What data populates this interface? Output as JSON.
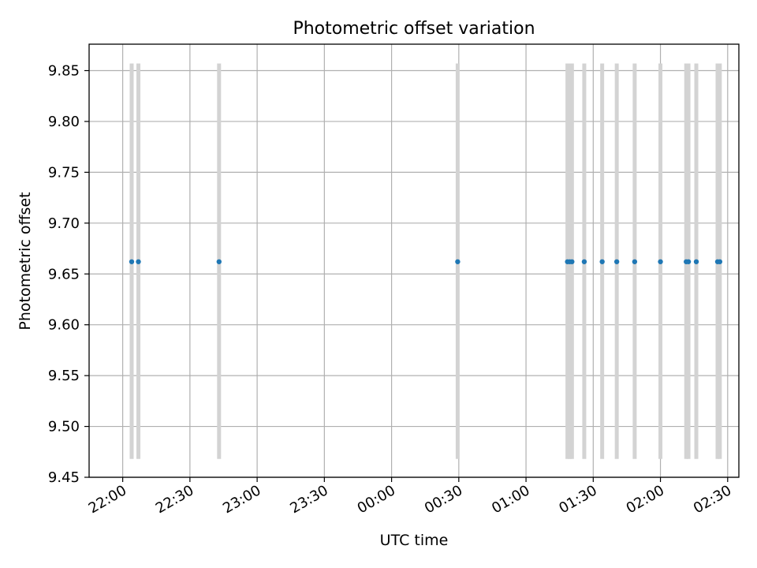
{
  "chart_data": {
    "type": "scatter",
    "title": "Photometric offset variation",
    "xlabel": "UTC time",
    "ylabel": "Photometric offset",
    "x_unit": "minutes",
    "xlim": [
      -15,
      275
    ],
    "ylim": [
      9.45,
      9.876
    ],
    "grid": true,
    "x_ticks": [
      {
        "value": 0,
        "label": "22:00"
      },
      {
        "value": 30,
        "label": "22:30"
      },
      {
        "value": 60,
        "label": "23:00"
      },
      {
        "value": 90,
        "label": "23:30"
      },
      {
        "value": 120,
        "label": "00:00"
      },
      {
        "value": 150,
        "label": "00:30"
      },
      {
        "value": 180,
        "label": "01:00"
      },
      {
        "value": 210,
        "label": "01:30"
      },
      {
        "value": 240,
        "label": "02:00"
      },
      {
        "value": 270,
        "label": "02:30"
      }
    ],
    "y_ticks": [
      {
        "value": 9.45,
        "label": "9.45"
      },
      {
        "value": 9.5,
        "label": "9.50"
      },
      {
        "value": 9.55,
        "label": "9.55"
      },
      {
        "value": 9.6,
        "label": "9.60"
      },
      {
        "value": 9.65,
        "label": "9.65"
      },
      {
        "value": 9.7,
        "label": "9.70"
      },
      {
        "value": 9.75,
        "label": "9.75"
      },
      {
        "value": 9.8,
        "label": "9.80"
      },
      {
        "value": 9.85,
        "label": "9.85"
      }
    ],
    "marker_color": "#1f77b4",
    "errorbar_color": "#d3d3d3",
    "points": [
      {
        "x": 4.0,
        "y": 9.662,
        "ylow": 9.468,
        "yhigh": 9.857
      },
      {
        "x": 7.0,
        "y": 9.662,
        "ylow": 9.468,
        "yhigh": 9.857
      },
      {
        "x": 43.0,
        "y": 9.662,
        "ylow": 9.468,
        "yhigh": 9.857
      },
      {
        "x": 149.5,
        "y": 9.662,
        "ylow": 9.468,
        "yhigh": 9.857
      },
      {
        "x": 198.5,
        "y": 9.662,
        "ylow": 9.468,
        "yhigh": 9.857
      },
      {
        "x": 199.5,
        "y": 9.662,
        "ylow": 9.468,
        "yhigh": 9.857
      },
      {
        "x": 200.5,
        "y": 9.662,
        "ylow": 9.468,
        "yhigh": 9.857
      },
      {
        "x": 206.0,
        "y": 9.662,
        "ylow": 9.468,
        "yhigh": 9.857
      },
      {
        "x": 214.0,
        "y": 9.662,
        "ylow": 9.468,
        "yhigh": 9.857
      },
      {
        "x": 220.5,
        "y": 9.662,
        "ylow": 9.468,
        "yhigh": 9.857
      },
      {
        "x": 228.5,
        "y": 9.662,
        "ylow": 9.468,
        "yhigh": 9.857
      },
      {
        "x": 240.0,
        "y": 9.662,
        "ylow": 9.468,
        "yhigh": 9.857
      },
      {
        "x": 251.5,
        "y": 9.662,
        "ylow": 9.468,
        "yhigh": 9.857
      },
      {
        "x": 252.5,
        "y": 9.662,
        "ylow": 9.468,
        "yhigh": 9.857
      },
      {
        "x": 256.0,
        "y": 9.662,
        "ylow": 9.468,
        "yhigh": 9.857
      },
      {
        "x": 265.5,
        "y": 9.662,
        "ylow": 9.468,
        "yhigh": 9.857
      },
      {
        "x": 266.5,
        "y": 9.662,
        "ylow": 9.468,
        "yhigh": 9.857
      }
    ]
  }
}
